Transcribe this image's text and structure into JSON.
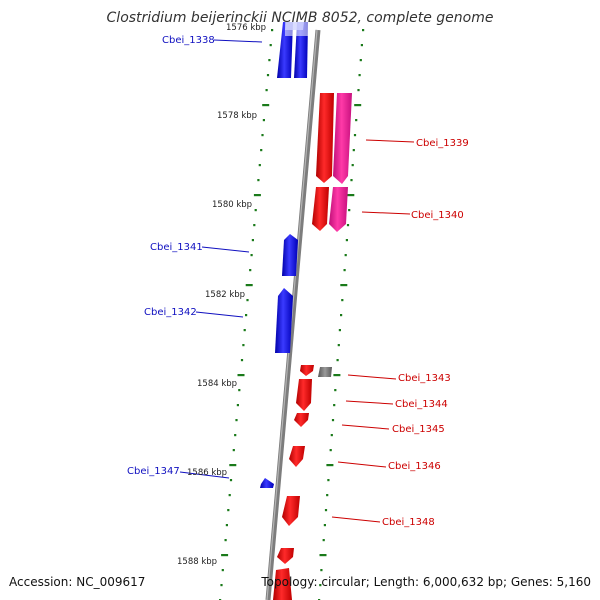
{
  "title": "Clostridium beijerinckii NCIMB 8052, complete genome",
  "footer": {
    "accession": "Accession: NC_009617",
    "summary": "Topology: circular; Length: 6,000,632 bp; Genes: 5,160"
  },
  "ticks": [
    {
      "label": "1576 kbp",
      "position_kbp": 1576
    },
    {
      "label": "1578 kbp",
      "position_kbp": 1578
    },
    {
      "label": "1580 kbp",
      "position_kbp": 1580
    },
    {
      "label": "1582 kbp",
      "position_kbp": 1582
    },
    {
      "label": "1584 kbp",
      "position_kbp": 1584
    },
    {
      "label": "1586 kbp",
      "position_kbp": 1586
    },
    {
      "label": "1588 kbp",
      "position_kbp": 1588
    }
  ],
  "genes": [
    {
      "label": "Cbei_1338",
      "strand": "reverse"
    },
    {
      "label": "Cbei_1339",
      "strand": "forward"
    },
    {
      "label": "Cbei_1340",
      "strand": "forward"
    },
    {
      "label": "Cbei_1341",
      "strand": "reverse"
    },
    {
      "label": "Cbei_1342",
      "strand": "reverse"
    },
    {
      "label": "Cbei_1343",
      "strand": "forward"
    },
    {
      "label": "Cbei_1344",
      "strand": "forward"
    },
    {
      "label": "Cbei_1345",
      "strand": "forward"
    },
    {
      "label": "Cbei_1346",
      "strand": "forward"
    },
    {
      "label": "Cbei_1347",
      "strand": "reverse"
    },
    {
      "label": "Cbei_1348",
      "strand": "forward"
    }
  ],
  "colors": {
    "reverse_cds": "#0000ee",
    "forward_cds": "#ee0000",
    "forward_feature": "#ee1493",
    "backbone": "#808080",
    "gc_ticks": "#1a7a1a"
  }
}
